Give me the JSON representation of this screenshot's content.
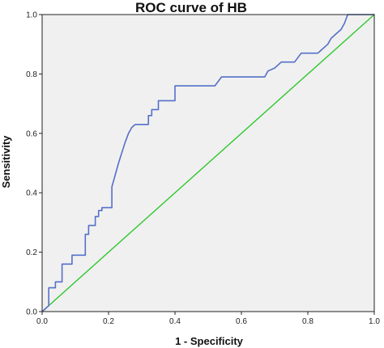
{
  "chart_data": {
    "type": "line",
    "title": "ROC curve of HB",
    "xlabel": "1 - Specificity",
    "ylabel": "Sensitivity",
    "xlim": [
      0.0,
      1.0
    ],
    "ylim": [
      0.0,
      1.0
    ],
    "xticks": [
      "0.0",
      "0.2",
      "0.4",
      "0.6",
      "0.8",
      "1.0"
    ],
    "yticks": [
      "0.0",
      "0.2",
      "0.4",
      "0.6",
      "0.8",
      "1.0"
    ],
    "grid": false,
    "background_color": "#f0f0f0",
    "series": [
      {
        "color": "#5570c8",
        "x": [
          0.0,
          0.02,
          0.02,
          0.04,
          0.04,
          0.06,
          0.06,
          0.08,
          0.08,
          0.09,
          0.09,
          0.13,
          0.13,
          0.14,
          0.14,
          0.16,
          0.16,
          0.17,
          0.17,
          0.18,
          0.18,
          0.21,
          0.21,
          0.23,
          0.25,
          0.26,
          0.27,
          0.28,
          0.3,
          0.32,
          0.32,
          0.33,
          0.33,
          0.35,
          0.35,
          0.4,
          0.4,
          0.52,
          0.54,
          0.67,
          0.68,
          0.7,
          0.72,
          0.76,
          0.78,
          0.83,
          0.84,
          0.86,
          0.87,
          0.89,
          0.9,
          0.91,
          0.92,
          0.95,
          0.96,
          1.0
        ],
        "y": [
          0.0,
          0.02,
          0.08,
          0.08,
          0.1,
          0.1,
          0.16,
          0.16,
          0.16,
          0.16,
          0.19,
          0.19,
          0.26,
          0.26,
          0.29,
          0.29,
          0.32,
          0.32,
          0.34,
          0.34,
          0.35,
          0.35,
          0.42,
          0.5,
          0.57,
          0.6,
          0.62,
          0.63,
          0.63,
          0.63,
          0.66,
          0.66,
          0.68,
          0.68,
          0.71,
          0.71,
          0.76,
          0.76,
          0.79,
          0.79,
          0.81,
          0.82,
          0.84,
          0.84,
          0.87,
          0.87,
          0.88,
          0.9,
          0.92,
          0.94,
          0.95,
          0.97,
          1.0,
          1.0,
          1.0,
          1.0
        ]
      },
      {
        "color": "#2ec82e",
        "x": [
          0.0,
          1.0
        ],
        "y": [
          0.0,
          1.0
        ]
      }
    ]
  }
}
